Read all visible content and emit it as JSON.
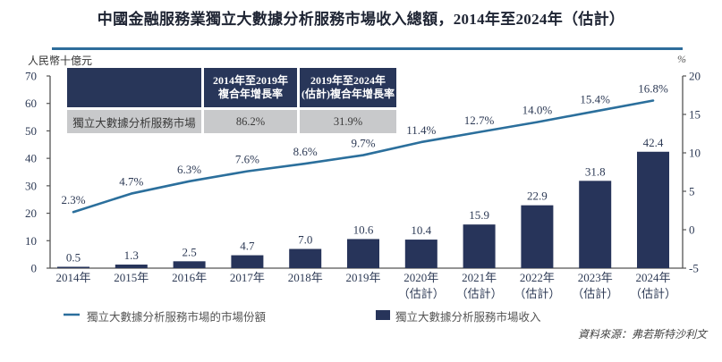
{
  "title": "中國金融服務業獨立大數據分析服務市場收入總額，2014年至2024年（估計）",
  "axis_units": {
    "left": "人民幣十億元",
    "right": "%"
  },
  "cagr_table": {
    "headers": [
      {
        "lines": [
          "",
          ""
        ]
      },
      {
        "lines": [
          "2014年至2019年",
          "複合年增長率"
        ]
      },
      {
        "lines": [
          "2019年至2024年",
          "(估計)複合年增長率"
        ]
      }
    ],
    "rows": [
      {
        "cells": [
          "獨立大數據分析服務市場",
          "86.2%",
          "31.9%"
        ]
      }
    ]
  },
  "legend": {
    "line_label": "獨立大數據分析服務市場的市場份額",
    "bar_label": "獨立大數據分析服務市場收入"
  },
  "source": "資料來源：弗若斯特沙利文",
  "chart_data": {
    "type": "bar",
    "title": "中國金融服務業獨立大數據分析服務市場收入總額，2014年至2024年（估計）",
    "categories": [
      "2014年",
      "2015年",
      "2016年",
      "2017年",
      "2018年",
      "2019年",
      "2020年",
      "2021年",
      "2022年",
      "2023年",
      "2024年"
    ],
    "category_sublabels": [
      "",
      "",
      "",
      "",
      "",
      "",
      "（估計）",
      "（估計）",
      "（估計）",
      "（估計）",
      "（估計）"
    ],
    "series": [
      {
        "name": "獨立大數據分析服務市場收入",
        "type": "bar",
        "axis": "left",
        "color": "#27345a",
        "values": [
          0.5,
          1.3,
          2.5,
          4.7,
          7.0,
          10.6,
          10.4,
          15.9,
          22.9,
          31.8,
          42.4
        ],
        "labels": [
          "0.5",
          "1.3",
          "2.5",
          "4.7",
          "7.0",
          "10.6",
          "10.4",
          "15.9",
          "22.9",
          "31.8",
          "42.4"
        ]
      },
      {
        "name": "獨立大數據分析服務市場的市場份額",
        "type": "line",
        "axis": "right",
        "color": "#2b6f9c",
        "values": [
          2.3,
          4.7,
          6.3,
          7.6,
          8.6,
          9.7,
          11.4,
          12.7,
          14.0,
          15.4,
          16.8
        ],
        "labels": [
          "2.3%",
          "4.7%",
          "6.3%",
          "7.6%",
          "8.6%",
          "9.7%",
          "11.4%",
          "12.7%",
          "14.0%",
          "15.4%",
          "16.8%"
        ]
      }
    ],
    "y_left": {
      "label": "人民幣十億元",
      "range": [
        0,
        70
      ],
      "ticks": [
        "0",
        "10",
        "20",
        "30",
        "40",
        "50",
        "60",
        "70"
      ]
    },
    "y_right": {
      "label": "%",
      "range": [
        -5,
        20
      ],
      "ticks": [
        "-5",
        "0",
        "5",
        "10",
        "15",
        "20"
      ]
    },
    "xlabel": "",
    "grid": false,
    "legend_position": "bottom"
  }
}
